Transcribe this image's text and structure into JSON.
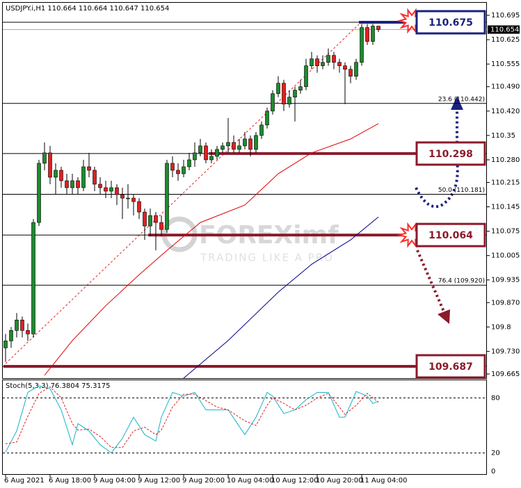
{
  "chart_data": [
    {
      "type": "candlestick",
      "title": "USDJPY.i,H1  110.664 110.664 110.647 110.654",
      "categories": [
        "6 Aug 2021",
        null,
        null,
        null,
        null,
        null,
        null,
        null,
        "6 Aug 18:00",
        null,
        null,
        null,
        null,
        null,
        null,
        null,
        "9 Aug 04:00",
        null,
        null,
        null,
        null,
        null,
        null,
        null,
        "9 Aug 12:00",
        null,
        null,
        null,
        null,
        null,
        null,
        null,
        "9 Aug 20:00",
        null,
        null,
        null,
        null,
        null,
        null,
        null,
        "10 Aug 04:00",
        null,
        null,
        null,
        null,
        null,
        null,
        null,
        "10 Aug 12:00",
        null,
        null,
        null,
        null,
        null,
        null,
        null,
        "10 Aug 20:00",
        null,
        null,
        null,
        null,
        null,
        null,
        null,
        "11 Aug 04:00",
        null,
        null,
        null
      ],
      "open": [
        109.74,
        109.76,
        109.79,
        109.82,
        109.79,
        109.78,
        110.1,
        110.27,
        110.3,
        110.23,
        110.25,
        110.22,
        110.2,
        110.22,
        110.2,
        110.26,
        110.25,
        110.21,
        110.2,
        110.19,
        110.2,
        110.18,
        110.17,
        110.17,
        110.16,
        110.13,
        110.09,
        110.12,
        110.1,
        110.08,
        110.27,
        110.25,
        110.24,
        110.26,
        110.28,
        110.3,
        110.32,
        110.28,
        110.29,
        110.31,
        110.32,
        110.33,
        110.31,
        110.32,
        110.34,
        110.31,
        110.35,
        110.38,
        110.42,
        110.47,
        110.5,
        110.44,
        110.46,
        110.48,
        110.49,
        110.55,
        110.57,
        110.55,
        110.56,
        110.58,
        110.56,
        110.55,
        110.54,
        110.52,
        110.56,
        110.66,
        110.62,
        110.664
      ],
      "high": [
        109.78,
        109.8,
        109.84,
        109.83,
        109.81,
        110.11,
        110.28,
        110.33,
        110.32,
        110.27,
        110.26,
        110.24,
        110.24,
        110.23,
        110.28,
        110.3,
        110.26,
        110.23,
        110.22,
        110.22,
        110.21,
        110.2,
        110.21,
        110.18,
        110.17,
        110.14,
        110.14,
        110.13,
        110.12,
        110.28,
        110.29,
        110.27,
        110.28,
        110.3,
        110.33,
        110.34,
        110.33,
        110.31,
        110.32,
        110.33,
        110.4,
        110.35,
        110.34,
        110.36,
        110.35,
        110.36,
        110.39,
        110.43,
        110.48,
        110.52,
        110.51,
        110.48,
        110.49,
        110.51,
        110.57,
        110.59,
        110.58,
        110.58,
        110.6,
        110.59,
        110.57,
        110.56,
        110.55,
        110.57,
        110.67,
        110.67,
        110.67,
        110.664
      ],
      "low": [
        109.7,
        109.74,
        109.77,
        109.77,
        109.76,
        109.77,
        110.09,
        110.25,
        110.21,
        110.18,
        110.2,
        110.18,
        110.18,
        110.18,
        110.19,
        110.23,
        110.19,
        110.18,
        110.17,
        110.17,
        110.15,
        110.11,
        110.14,
        110.12,
        110.11,
        110.05,
        110.06,
        110.02,
        110.06,
        110.07,
        110.23,
        110.22,
        110.23,
        110.25,
        110.26,
        110.29,
        110.27,
        110.27,
        110.28,
        110.3,
        110.3,
        110.3,
        110.3,
        110.31,
        110.29,
        110.3,
        110.34,
        110.37,
        110.41,
        110.46,
        110.42,
        110.43,
        110.39,
        110.47,
        110.48,
        110.54,
        110.53,
        110.54,
        110.55,
        110.54,
        110.53,
        110.44,
        110.5,
        110.51,
        110.55,
        110.61,
        110.61,
        110.647
      ],
      "close": [
        109.76,
        109.79,
        109.82,
        109.79,
        109.78,
        110.1,
        110.27,
        110.3,
        110.23,
        110.25,
        110.22,
        110.2,
        110.22,
        110.2,
        110.26,
        110.25,
        110.21,
        110.2,
        110.19,
        110.2,
        110.18,
        110.17,
        110.17,
        110.16,
        110.13,
        110.09,
        110.12,
        110.1,
        110.08,
        110.27,
        110.25,
        110.24,
        110.26,
        110.28,
        110.3,
        110.32,
        110.28,
        110.29,
        110.31,
        110.32,
        110.33,
        110.31,
        110.32,
        110.34,
        110.31,
        110.35,
        110.38,
        110.42,
        110.47,
        110.5,
        110.44,
        110.46,
        110.48,
        110.49,
        110.55,
        110.57,
        110.55,
        110.56,
        110.58,
        110.56,
        110.55,
        110.54,
        110.52,
        110.56,
        110.66,
        110.62,
        110.664,
        110.654
      ],
      "up_color": "#1f8a2e",
      "down_color": "#e02020",
      "ylim": [
        109.653,
        110.715
      ],
      "yticks": [
        110.695,
        110.625,
        110.555,
        {
          "value": 110.49,
          "label": "110.490"
        },
        {
          "value": 110.42,
          "label": "110.420"
        },
        110.35,
        {
          "value": 110.28,
          "label": "110.280"
        },
        110.215,
        110.145,
        110.075,
        110.005,
        109.935,
        {
          "value": 109.87,
          "label": "109.870"
        },
        109.8,
        {
          "value": 109.73,
          "label": "109.730"
        },
        109.665
      ],
      "current_price": 110.654,
      "levels": [
        {
          "value": 110.675,
          "label": "110.675",
          "style": "box",
          "color": "#1a237e"
        },
        {
          "value": 110.442,
          "label": "23.6 (110.442)",
          "style": "fib"
        },
        {
          "value": 110.298,
          "label": "110.298",
          "style": "box",
          "color": "#8b1a2b"
        },
        {
          "value": 110.181,
          "label": "50.0 (110.181)",
          "style": "fib"
        },
        {
          "value": 110.064,
          "label": "110.064",
          "style": "box",
          "color": "#8b1a2b"
        },
        {
          "value": 109.92,
          "label": "76.4 (109.920)",
          "style": "fib"
        },
        {
          "value": 109.687,
          "label": "109.687",
          "style": "box",
          "color": "#8b1a2b"
        }
      ],
      "overlays": [
        {
          "color": "#e00000",
          "x": [
            7,
            12,
            18,
            24,
            29,
            35,
            43,
            49,
            55,
            62,
            67
          ],
          "values": [
            109.661,
            109.761,
            109.861,
            109.95,
            110.02,
            110.1,
            110.15,
            110.24,
            110.3,
            110.34,
            110.384
          ]
        },
        {
          "color": "#00008b",
          "x": [
            32,
            40,
            49,
            55,
            62,
            67
          ],
          "values": [
            109.653,
            109.761,
            109.9,
            109.98,
            110.05,
            110.116
          ]
        }
      ],
      "watermark": {
        "brand": "FOREXimf",
        "tagline": "TRADING LIKE A PRO"
      }
    },
    {
      "type": "line",
      "title": "Stoch(5,3,3) 76.3804 75.3175",
      "ylim": [
        0,
        100
      ],
      "yticks": [
        80,
        20,
        0
      ],
      "series": [
        {
          "color": "#17b3c9",
          "x": [
            0,
            2,
            4,
            6,
            8,
            10,
            12,
            13,
            15,
            17,
            19,
            21,
            23,
            25,
            27,
            28,
            30,
            32,
            34,
            36,
            38,
            40,
            43,
            45,
            47,
            48,
            50,
            52,
            54,
            56,
            58,
            60,
            61,
            63,
            65,
            66,
            67
          ],
          "values": [
            21,
            44,
            86,
            93,
            90,
            67,
            29,
            52,
            44,
            29,
            20,
            36,
            59,
            40,
            33,
            59,
            86,
            82,
            86,
            67,
            67,
            67,
            40,
            59,
            86,
            82,
            63,
            67,
            78,
            86,
            86,
            59,
            59,
            87,
            82,
            74,
            76.3804
          ]
        },
        {
          "color": "#e02020",
          "dashed": true,
          "x": [
            0,
            2,
            4,
            6,
            8,
            10,
            12,
            13,
            15,
            17,
            19,
            21,
            23,
            25,
            27,
            28,
            30,
            32,
            34,
            36,
            38,
            40,
            43,
            45,
            47,
            48,
            50,
            52,
            54,
            56,
            58,
            60,
            61,
            63,
            65,
            66,
            67
          ],
          "values": [
            30,
            32,
            60,
            85,
            92,
            80,
            52,
            45,
            46,
            38,
            26,
            26,
            44,
            48,
            40,
            45,
            70,
            84,
            84,
            77,
            70,
            67,
            55,
            50,
            72,
            80,
            74,
            67,
            72,
            80,
            85,
            70,
            62,
            72,
            85,
            80,
            75.3175
          ]
        }
      ]
    }
  ]
}
